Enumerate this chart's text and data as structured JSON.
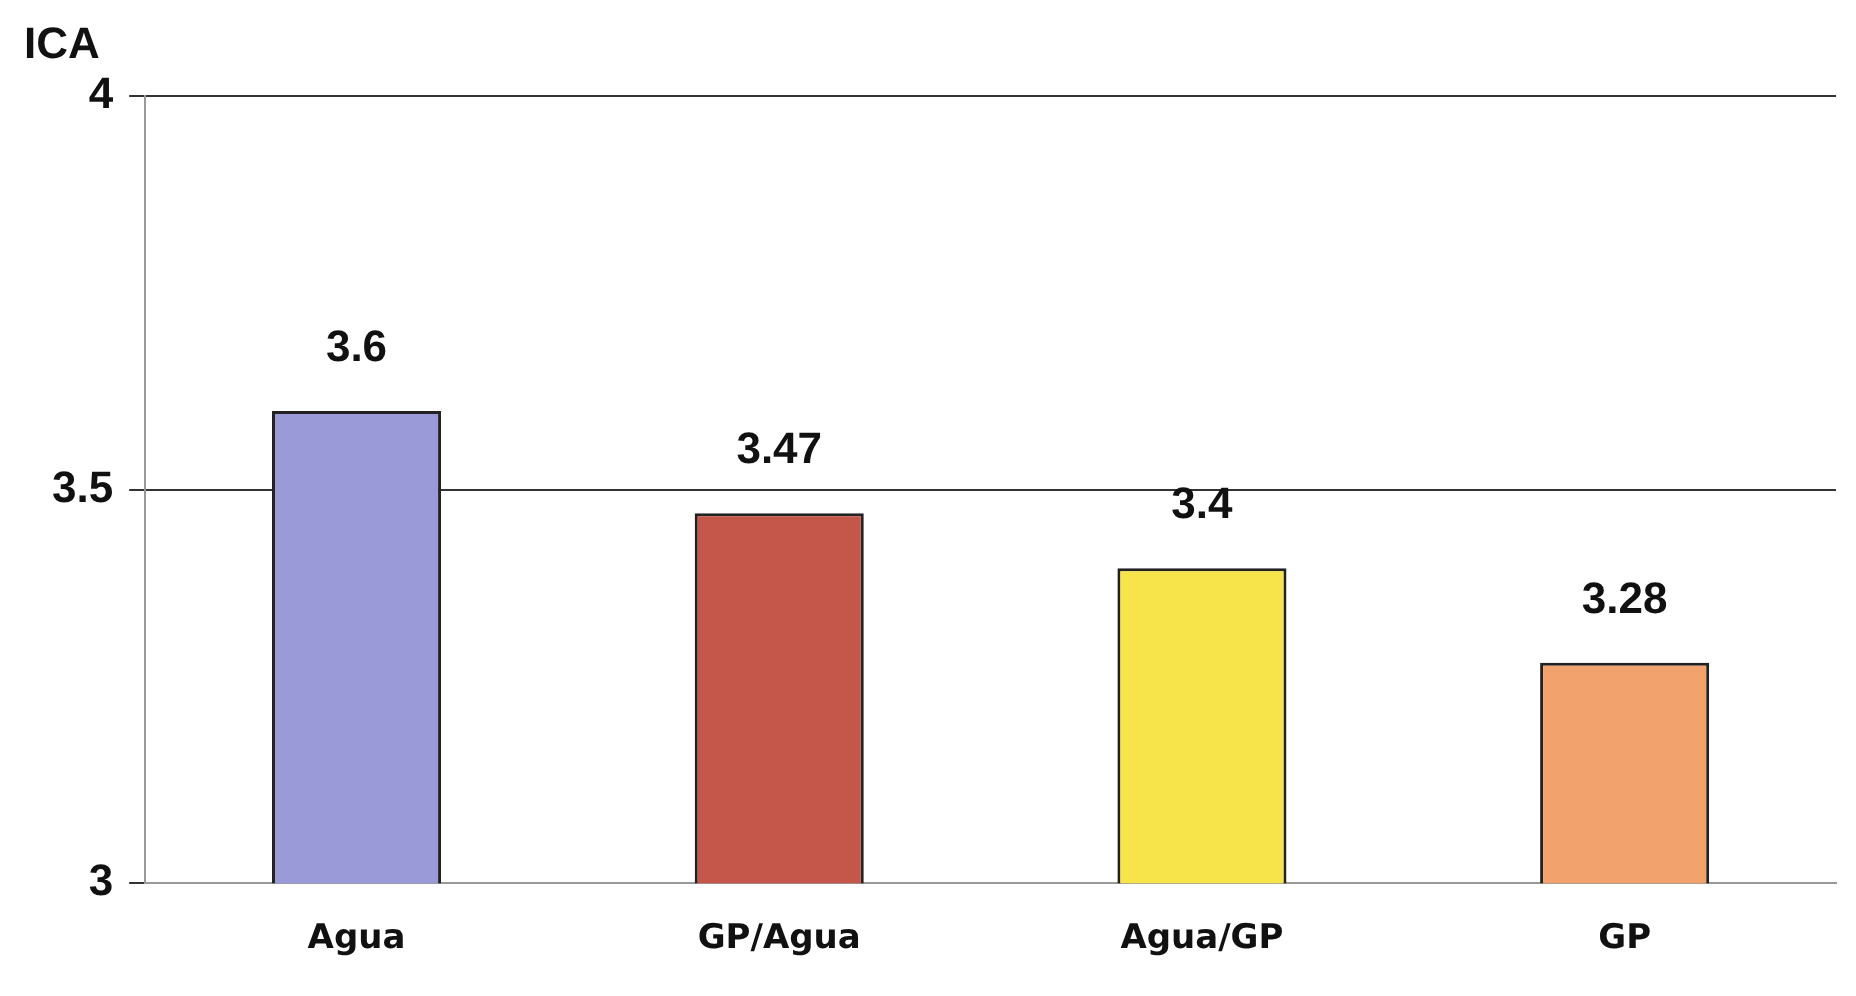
{
  "chart_data": {
    "type": "bar",
    "ylabel": "ICA",
    "categories": [
      "Agua",
      "GP/Agua",
      "Agua/GP",
      "GP"
    ],
    "values": [
      3.6,
      3.47,
      3.4,
      3.28
    ],
    "colors": [
      "#9a9ad8",
      "#c4564a",
      "#f7e34a",
      "#f2a26c"
    ],
    "ylim": [
      3,
      4
    ],
    "yticks": [
      3,
      3.5,
      4
    ],
    "grid": "y",
    "data_labels": true,
    "legend": false
  }
}
